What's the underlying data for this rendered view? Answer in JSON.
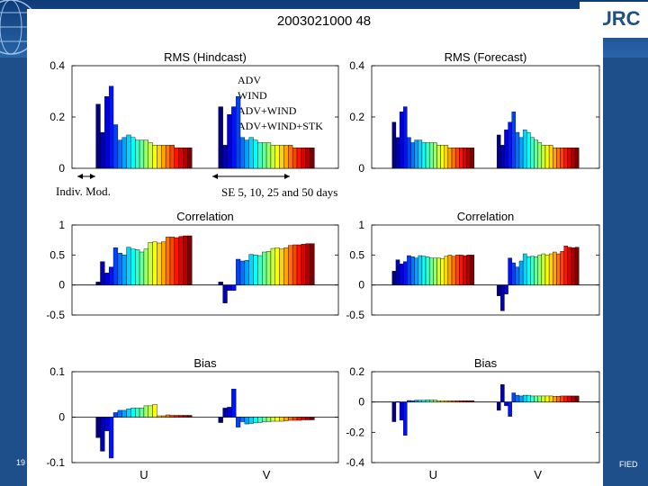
{
  "slide": {
    "logo_text": "NURC",
    "footer_left": "19",
    "footer_right": "FIED"
  },
  "figure": {
    "suptitle": "2003021000 48",
    "legend": [
      "ADV",
      "WIND",
      "ADV+WIND",
      "ADV+WIND+STK"
    ],
    "annotation_indiv": "Indiv. Mod.",
    "annotation_se": "SE 5, 10, 25 and 50 days"
  },
  "chart_data": [
    {
      "id": "rms_hindcast",
      "type": "bar",
      "title": "RMS (Hindcast)",
      "ylim": [
        0,
        0.4
      ],
      "yticks": [
        "0",
        "0.2",
        "0.4"
      ],
      "groups": [
        {
          "label": "",
          "values": [
            0.25,
            0.14,
            0.28,
            0.32,
            0.17,
            0.11,
            0.12,
            0.13,
            0.12,
            0.11,
            0.11,
            0.11,
            0.1,
            0.09,
            0.09,
            0.09,
            0.09,
            0.09,
            0.08,
            0.08,
            0.08,
            0.08
          ]
        },
        {
          "label": "",
          "values": [
            0.24,
            0.09,
            0.21,
            0.24,
            0.28,
            0.12,
            0.11,
            0.12,
            0.11,
            0.1,
            0.1,
            0.1,
            0.09,
            0.09,
            0.09,
            0.09,
            0.09,
            0.08,
            0.08,
            0.08,
            0.08,
            0.08
          ]
        }
      ]
    },
    {
      "id": "rms_forecast",
      "type": "bar",
      "title": "RMS (Forecast)",
      "ylim": [
        0,
        0.4
      ],
      "yticks": [
        "0",
        "0.2",
        "0.4"
      ],
      "groups": [
        {
          "label": "",
          "values": [
            0.18,
            0.12,
            0.22,
            0.24,
            0.12,
            0.1,
            0.11,
            0.11,
            0.1,
            0.1,
            0.1,
            0.1,
            0.09,
            0.09,
            0.09,
            0.08,
            0.08,
            0.08,
            0.08,
            0.08,
            0.08,
            0.08
          ]
        },
        {
          "label": "",
          "values": [
            0.13,
            0.09,
            0.15,
            0.18,
            0.22,
            0.14,
            0.12,
            0.15,
            0.14,
            0.12,
            0.11,
            0.1,
            0.09,
            0.09,
            0.09,
            0.08,
            0.08,
            0.08,
            0.08,
            0.08,
            0.08,
            0.08
          ]
        }
      ]
    },
    {
      "id": "corr_hindcast",
      "type": "bar",
      "title": "Correlation",
      "ylim": [
        -0.5,
        1
      ],
      "yticks": [
        "-0.5",
        "0",
        "0.5",
        "1"
      ],
      "groups": [
        {
          "label": "",
          "values": [
            0.05,
            0.39,
            0.2,
            0.3,
            0.62,
            0.53,
            0.5,
            0.63,
            0.6,
            0.59,
            0.55,
            0.6,
            0.71,
            0.72,
            0.7,
            0.72,
            0.8,
            0.8,
            0.79,
            0.81,
            0.82,
            0.82
          ]
        },
        {
          "label": "",
          "values": [
            0.05,
            -0.3,
            -0.09,
            -0.09,
            0.43,
            0.4,
            0.41,
            0.51,
            0.5,
            0.49,
            0.55,
            0.56,
            0.61,
            0.62,
            0.6,
            0.62,
            0.66,
            0.67,
            0.67,
            0.68,
            0.69,
            0.69
          ]
        }
      ]
    },
    {
      "id": "corr_forecast",
      "type": "bar",
      "title": "Correlation",
      "ylim": [
        -0.5,
        1
      ],
      "yticks": [
        "-0.5",
        "0",
        "0.5",
        "1"
      ],
      "groups": [
        {
          "label": "",
          "values": [
            0.23,
            0.42,
            0.35,
            0.39,
            0.49,
            0.47,
            0.45,
            0.49,
            0.48,
            0.47,
            0.45,
            0.45,
            0.45,
            0.44,
            0.48,
            0.5,
            0.48,
            0.5,
            0.5,
            0.49,
            0.5,
            0.5
          ]
        },
        {
          "label": "",
          "values": [
            -0.18,
            -0.43,
            -0.15,
            0.45,
            0.37,
            0.3,
            0.4,
            0.52,
            0.47,
            0.48,
            0.47,
            0.5,
            0.52,
            0.5,
            0.52,
            0.55,
            0.52,
            0.56,
            0.65,
            0.63,
            0.62,
            0.63
          ]
        }
      ]
    },
    {
      "id": "bias_hindcast",
      "type": "bar",
      "title": "Bias",
      "ylim": [
        -0.1,
        0.1
      ],
      "yticks": [
        "-0.1",
        "0",
        "0.1"
      ],
      "xlabels": [
        "U",
        "V"
      ],
      "groups": [
        {
          "label": "U",
          "values": [
            -0.045,
            -0.075,
            -0.03,
            -0.09,
            0.01,
            0.015,
            0.015,
            0.018,
            0.02,
            0.02,
            0.02,
            0.025,
            0.025,
            0.028,
            0.003,
            0.003,
            0.005,
            0.004,
            0.004,
            0.004,
            0.004,
            0.004
          ]
        },
        {
          "label": "V",
          "values": [
            -0.012,
            0.02,
            0.022,
            0.062,
            -0.022,
            -0.01,
            -0.015,
            -0.014,
            -0.012,
            -0.012,
            -0.01,
            -0.01,
            -0.009,
            -0.009,
            -0.009,
            -0.008,
            -0.007,
            -0.007,
            -0.007,
            -0.006,
            -0.006,
            -0.006
          ]
        }
      ]
    },
    {
      "id": "bias_forecast",
      "type": "bar",
      "title": "Bias",
      "ylim": [
        -0.4,
        0.2
      ],
      "yticks": [
        "-0.4",
        "-0.2",
        "0",
        "0.2"
      ],
      "xlabels": [
        "U",
        "V"
      ],
      "groups": [
        {
          "label": "U",
          "values": [
            -0.13,
            0.003,
            -0.12,
            -0.22,
            0.01,
            0.008,
            0.012,
            0.012,
            0.012,
            0.014,
            0.014,
            0.014,
            0.008,
            0.008,
            0.008,
            0.008,
            0.008,
            0.008,
            0.008,
            0.008,
            0.008,
            0.008
          ]
        },
        {
          "label": "V",
          "values": [
            -0.055,
            0.115,
            -0.025,
            -0.095,
            0.06,
            0.045,
            0.04,
            0.045,
            0.045,
            0.04,
            0.04,
            0.04,
            0.04,
            0.04,
            0.04,
            0.038,
            0.038,
            0.04,
            0.04,
            0.04,
            0.04,
            0.04
          ]
        }
      ]
    }
  ]
}
